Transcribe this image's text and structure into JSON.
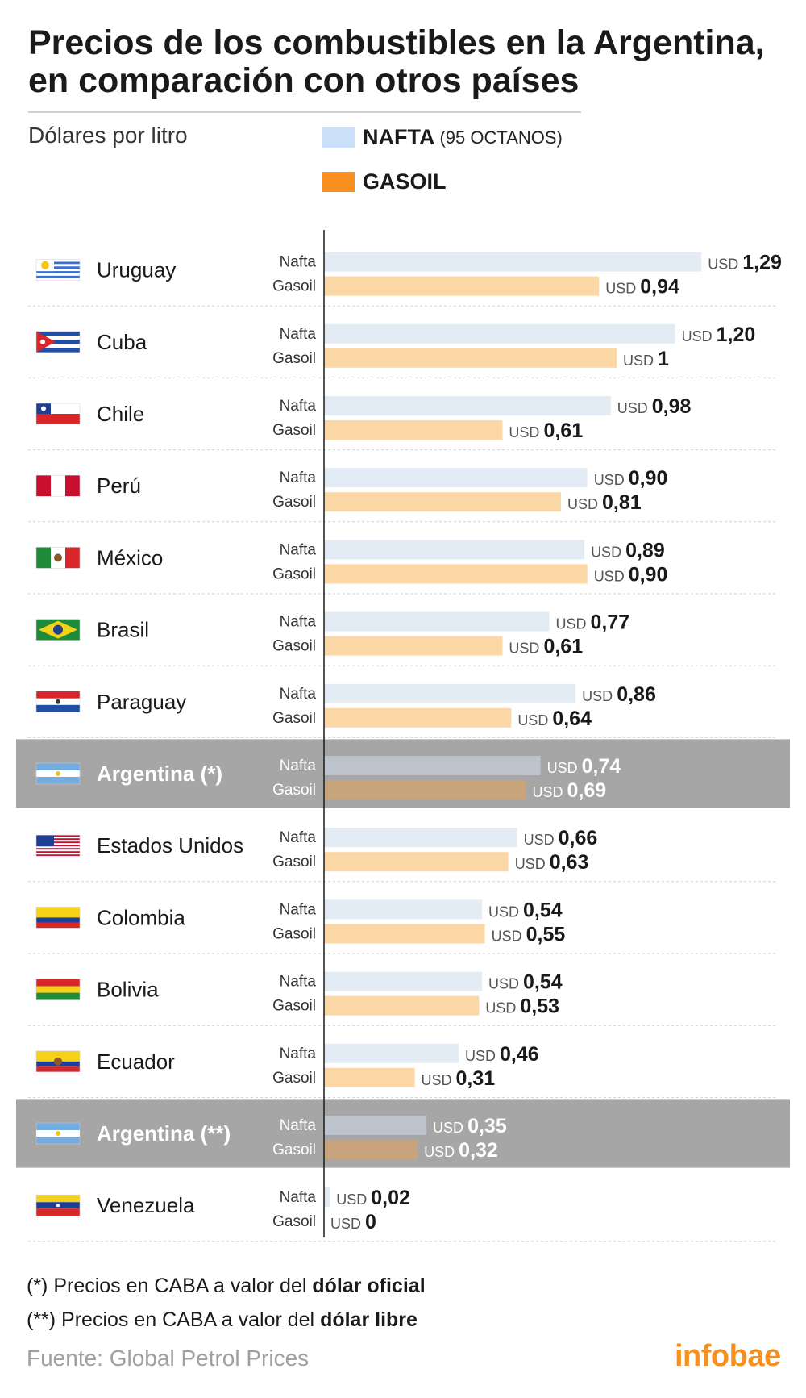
{
  "title_line1": "Precios de los combustibles en la Argentina,",
  "title_line2": "en comparación con otros países",
  "subtitle": "Dólares por litro",
  "legend": {
    "nafta_label": "NAFTA",
    "nafta_suffix": "(95 OCTANOS)",
    "gasoil_label": "GASOIL"
  },
  "colors": {
    "nafta": "#c9e0f8",
    "gasoil": "#f7901e",
    "nafta_bar": "#e3ebf5",
    "gasoil_bar": "#fad7a4",
    "highlight_bg": "#a6a6a6",
    "highlight_nafta": "#bcc3cc",
    "highlight_gasoil": "#c7a47c",
    "brand": "#f7901e"
  },
  "chart_data": {
    "type": "bar",
    "orientation": "horizontal",
    "unit": "USD",
    "row_labels": [
      "Nafta",
      "Gasoil"
    ],
    "categories": [
      "Uruguay",
      "Cuba",
      "Chile",
      "Perú",
      "México",
      "Brasil",
      "Paraguay",
      "Argentina (*)",
      "Estados Unidos",
      "Colombia",
      "Bolivia",
      "Ecuador",
      "Argentina (**)",
      "Venezuela"
    ],
    "series": [
      {
        "name": "Nafta",
        "values": [
          1.29,
          1.2,
          0.98,
          0.9,
          0.89,
          0.77,
          0.86,
          0.74,
          0.66,
          0.54,
          0.54,
          0.46,
          0.35,
          0.02
        ]
      },
      {
        "name": "Gasoil",
        "values": [
          0.94,
          1,
          0.61,
          0.81,
          0.9,
          0.61,
          0.64,
          0.69,
          0.63,
          0.55,
          0.53,
          0.31,
          0.32,
          0
        ]
      }
    ],
    "value_labels": {
      "nafta": [
        "1,29",
        "1,20",
        "0,98",
        "0,90",
        "0,89",
        "0,77",
        "0,86",
        "0,74",
        "0,66",
        "0,54",
        "0,54",
        "0,46",
        "0,35",
        "0,02"
      ],
      "gasoil": [
        "0,94",
        "1",
        "0,61",
        "0,81",
        "0,90",
        "0,61",
        "0,64",
        "0,69",
        "0,63",
        "0,55",
        "0,53",
        "0,31",
        "0,32",
        "0"
      ]
    },
    "highlighted": [
      "Argentina (*)",
      "Argentina (**)"
    ],
    "flags": [
      "uruguay-flag",
      "cuba-flag",
      "chile-flag",
      "peru-flag",
      "mexico-flag",
      "brasil-flag",
      "paraguay-flag",
      "argentina-flag",
      "estados-unidos-flag",
      "colombia-flag",
      "bolivia-flag",
      "ecuador-flag",
      "argentina-flag",
      "venezuela-flag"
    ]
  },
  "notes": {
    "note1_prefix": "(*) Precios en CABA a valor del ",
    "note1_bold": "dólar oficial",
    "note2_prefix": "(**) Precios en CABA a valor del ",
    "note2_bold": "dólar libre"
  },
  "source": "Fuente: Global Petrol Prices",
  "brand": "infobae"
}
